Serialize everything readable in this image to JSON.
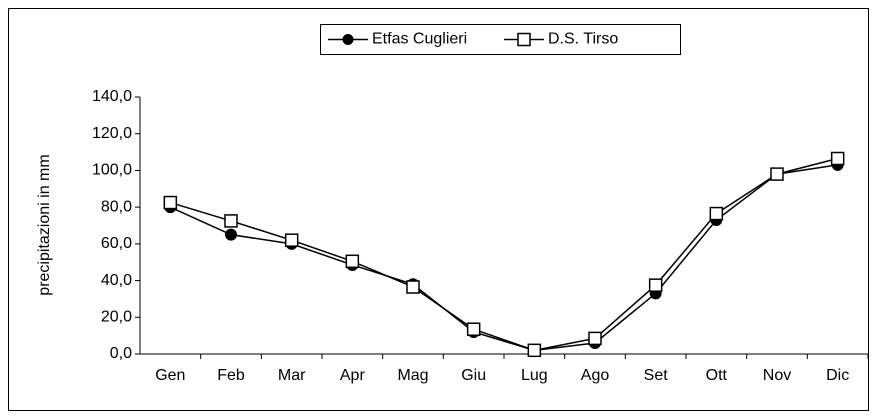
{
  "chart_data": {
    "type": "line",
    "y_label": "precipitazioni in mm",
    "categories": [
      "Gen",
      "Feb",
      "Mar",
      "Apr",
      "Mag",
      "Giu",
      "Lug",
      "Ago",
      "Set",
      "Ott",
      "Nov",
      "Dic"
    ],
    "series": [
      {
        "name": "Etfas Cuglieri",
        "color": "#000000",
        "marker": "circle",
        "values": [
          80,
          65,
          60,
          48.5,
          38,
          12,
          2,
          6,
          33,
          73,
          98,
          103
        ]
      },
      {
        "name": "D.S. Tirso",
        "color": "#000000",
        "marker": "square",
        "values": [
          82.5,
          72.5,
          62,
          50.5,
          36.5,
          13.5,
          2,
          8.5,
          37.5,
          76.5,
          98,
          106.5
        ]
      }
    ],
    "ylim": [
      0,
      140
    ],
    "yticks": [
      {
        "value": 0,
        "label": "0,0"
      },
      {
        "value": 20,
        "label": "20,0"
      },
      {
        "value": 40,
        "label": "40,0"
      },
      {
        "value": 60,
        "label": "60,0"
      },
      {
        "value": 80,
        "label": "80,0"
      },
      {
        "value": 100,
        "label": "100,0"
      },
      {
        "value": 120,
        "label": "120,0"
      },
      {
        "value": 140,
        "label": "140,0"
      }
    ],
    "grid": false,
    "legend_position": "top"
  }
}
